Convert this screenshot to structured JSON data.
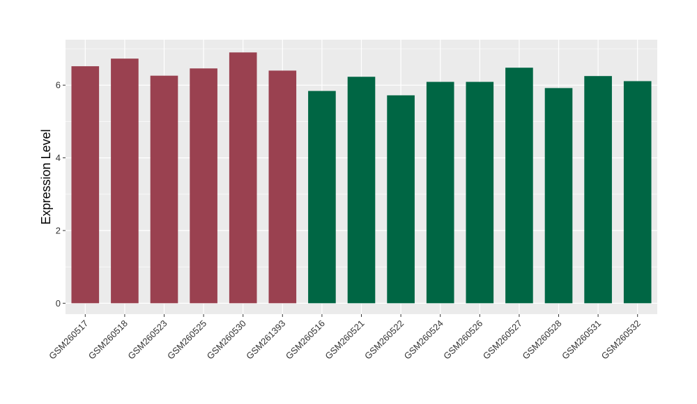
{
  "chart_data": {
    "type": "bar",
    "title": "",
    "xlabel": "",
    "ylabel": "Expression Level",
    "ylim": [
      -0.3,
      7.25
    ],
    "yticks": [
      0,
      2,
      4,
      6
    ],
    "grid": true,
    "legend": "none",
    "categories": [
      "GSM260517",
      "GSM260518",
      "GSM260523",
      "GSM260525",
      "GSM260530",
      "GSM261393",
      "GSM260516",
      "GSM260521",
      "GSM260522",
      "GSM260524",
      "GSM260526",
      "GSM260527",
      "GSM260528",
      "GSM260531",
      "GSM260532"
    ],
    "values": [
      6.52,
      6.73,
      6.26,
      6.46,
      6.9,
      6.4,
      5.84,
      6.23,
      5.72,
      6.09,
      6.09,
      6.48,
      5.92,
      6.25,
      6.11
    ],
    "groups": [
      1,
      1,
      1,
      1,
      1,
      1,
      2,
      2,
      2,
      2,
      2,
      2,
      2,
      2,
      2
    ],
    "group_colors": {
      "1": "#9a4150",
      "2": "#006644"
    }
  },
  "colors": {
    "panel_background": "#ebebeb",
    "grid_line": "#ffffff"
  }
}
